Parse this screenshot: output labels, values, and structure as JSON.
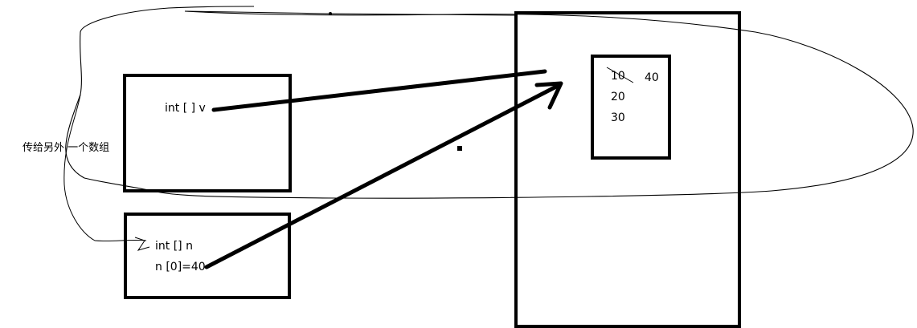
{
  "diagram": {
    "stack_box_v": {
      "label": "int [ ] v"
    },
    "stack_box_n": {
      "line1": "int []  n",
      "line2": "n [0]=40"
    },
    "heap_array": {
      "values": [
        "10",
        "20",
        "30"
      ],
      "overwrite_value": "40"
    },
    "side_note": "传给另外 一个数组"
  },
  "colors": {
    "ink": "#000000",
    "background": "#ffffff"
  }
}
